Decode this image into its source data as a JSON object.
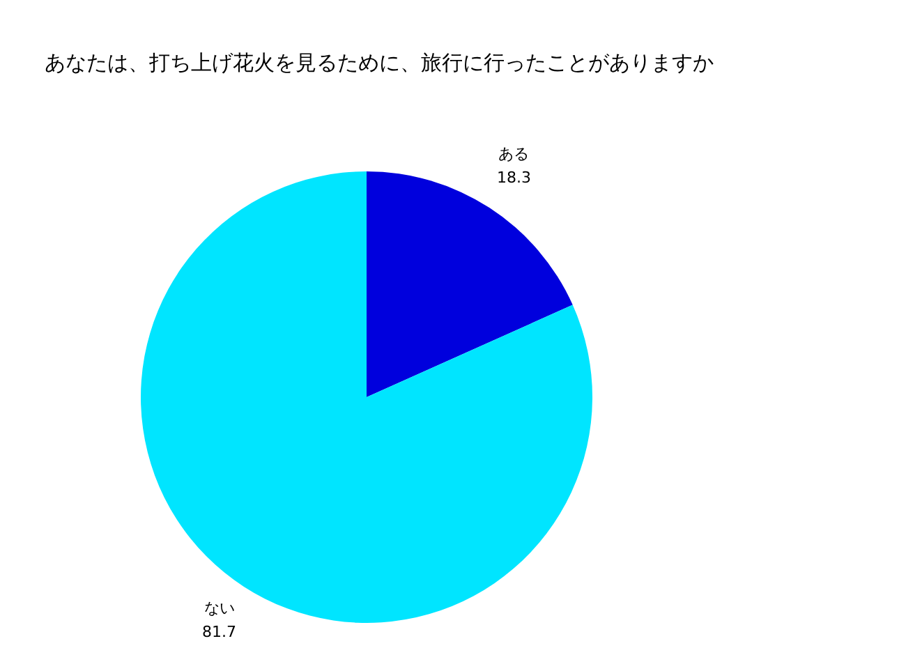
{
  "chart_data": {
    "type": "pie",
    "title": "あなたは、打ち上げ花火を見るために、旅行に行ったことがありますか",
    "categories": [
      "ある",
      "ない"
    ],
    "values": [
      18.3,
      81.7
    ],
    "colors": [
      "#0000dd",
      "#00e5ff"
    ],
    "data_labels": true
  }
}
